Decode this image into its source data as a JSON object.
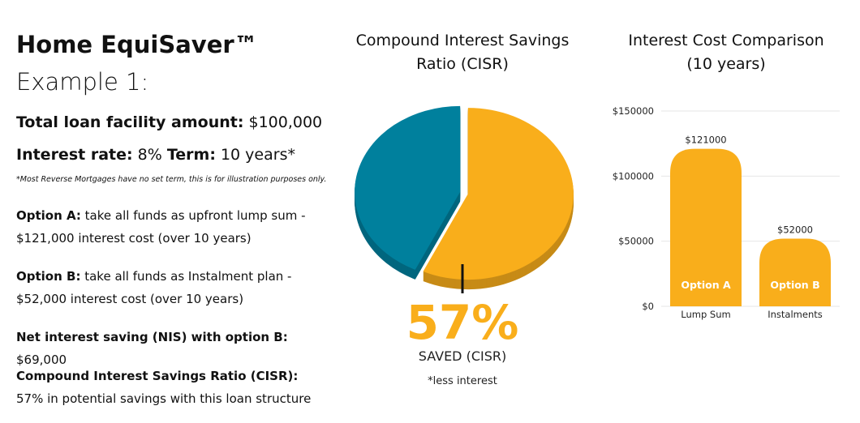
{
  "intro": {
    "title": "Home EquiSaver™",
    "subtitle": "Example 1:",
    "facts": [
      [
        {
          "text": "Total loan facility amount:",
          "bold": true
        },
        {
          "text": " $100,000",
          "bold": false
        }
      ],
      [
        {
          "text": "Interest rate:",
          "bold": true
        },
        {
          "text": " 8% ",
          "bold": false
        },
        {
          "text": "Term:",
          "bold": true
        },
        {
          "text": " 10 years*",
          "bold": false
        }
      ]
    ],
    "note": "*Most Reverse Mortgages have no set term, this is for illustration purposes only.",
    "paragraphs": [
      [
        {
          "text": "Option A:",
          "bold": true
        },
        {
          "text": " take all funds as upfront lump sum - $121,000 interest cost (over 10 years)",
          "bold": false
        }
      ],
      [
        {
          "text": "Option B:",
          "bold": true
        },
        {
          "text": " take all funds as Instalment plan - $52,000 interest cost (over 10 years)",
          "bold": false
        }
      ],
      [
        {
          "text": "Net interest saving (NIS) with option B:",
          "bold": true
        },
        {
          "text": " $69,000",
          "bold": false
        }
      ],
      [
        {
          "text": "Compound Interest Savings Ratio (CISR):",
          "bold": true
        },
        {
          "text": " 57% in potential savings with this loan structure",
          "bold": false
        }
      ]
    ]
  },
  "chart_data": [
    {
      "type": "pie",
      "title": "Compound Interest Savings Ratio (CISR)",
      "values": [
        57,
        43
      ],
      "value_labels": [
        "57%",
        null
      ],
      "colors": [
        "#f9ae1b",
        "#00809d"
      ],
      "annotations": [
        "SAVED (CISR)",
        "*less interest"
      ]
    },
    {
      "type": "bar",
      "title": "Interest Cost Comparison (10 years)",
      "categories": [
        "Lump Sum",
        "Instalments"
      ],
      "values": [
        121000,
        52000
      ],
      "value_labels": [
        "$121000",
        "$52000"
      ],
      "bar_labels": [
        "Option A",
        "Option B"
      ],
      "color": "#f9ae1b",
      "ylim": [
        0,
        150000
      ],
      "yticks": [
        {
          "value": 0,
          "label": "$0"
        },
        {
          "value": 50000,
          "label": "$50000"
        },
        {
          "value": 100000,
          "label": "$100000"
        },
        {
          "value": 150000,
          "label": "$150000"
        }
      ],
      "grid": true
    }
  ]
}
